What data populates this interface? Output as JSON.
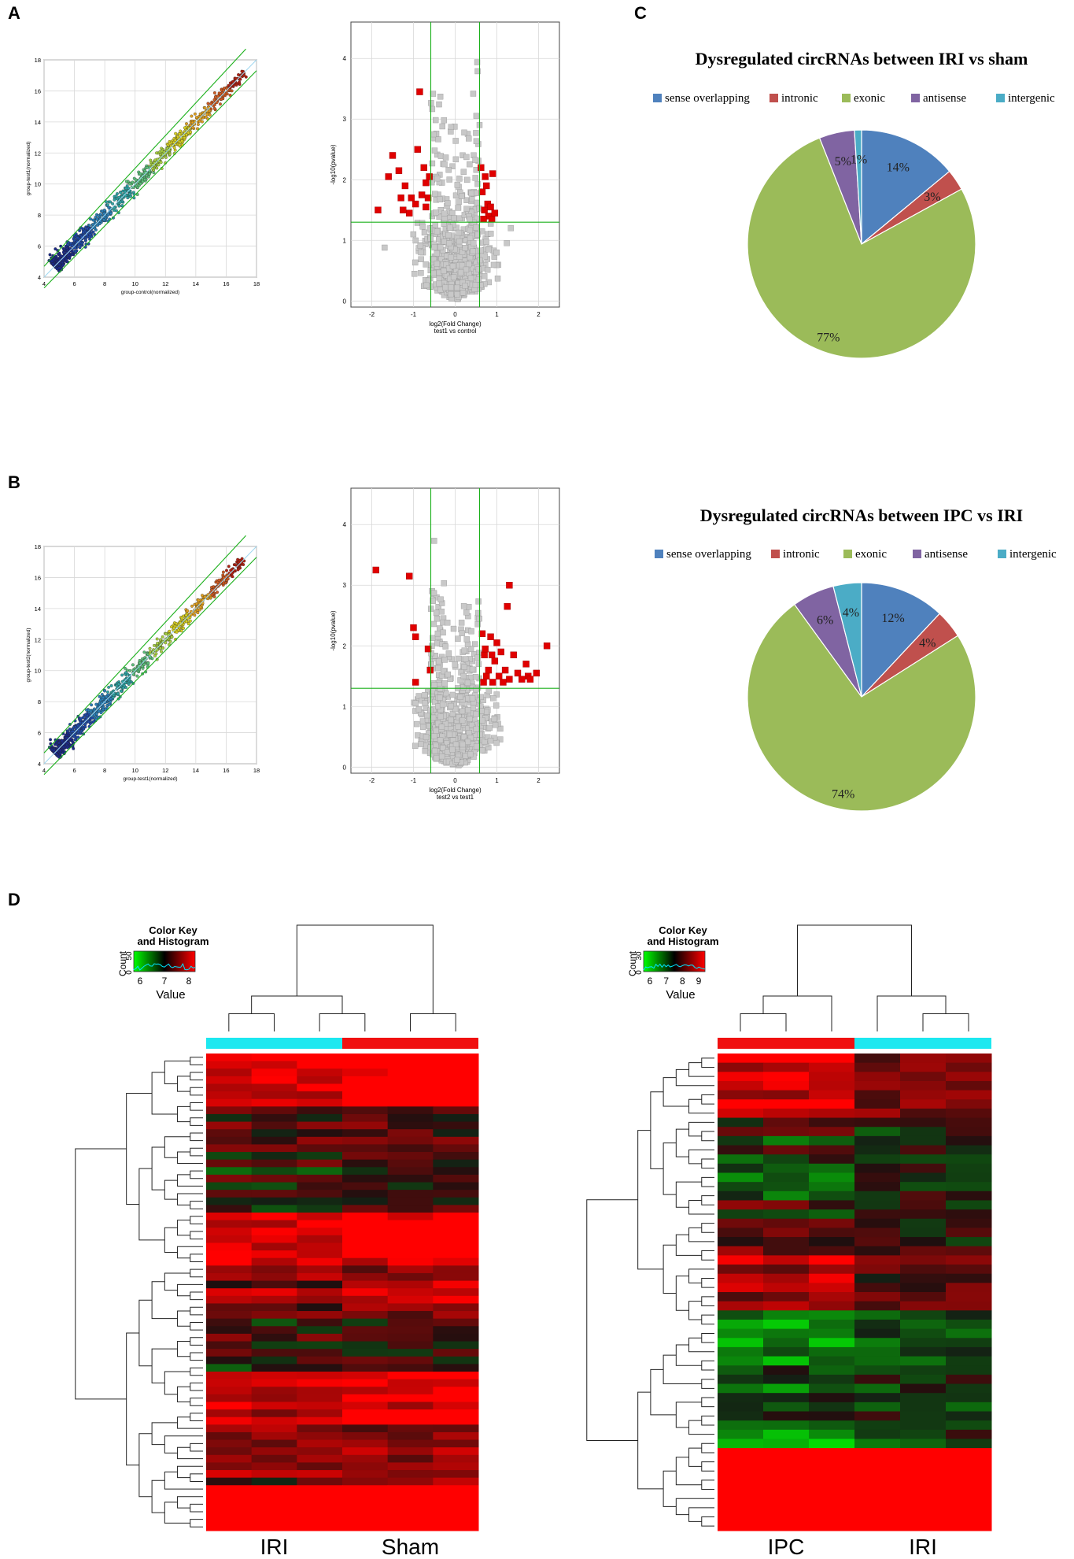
{
  "panels": {
    "A": "A",
    "B": "B",
    "C": "C",
    "D": "D"
  },
  "colors": {
    "sense": "#4F81BD",
    "intronic": "#C0504D",
    "exonic": "#9BBB59",
    "antisense": "#8064A2",
    "intergenic": "#4BACC6",
    "up": "#e00000",
    "gray": "#c8c8c8",
    "fit_line": "#1bb01b",
    "group_cyan": "#1de8f0",
    "group_red": "#f01010"
  },
  "chart_data": [
    {
      "id": "scatterA",
      "type": "scatter",
      "xlabel": "group-control(normalized)",
      "ylabel": "group-test1(normalized)",
      "xlim": [
        4,
        18
      ],
      "ylim": [
        4,
        18
      ],
      "ticks": [
        "4",
        "6",
        "8",
        "10",
        "12",
        "14",
        "16",
        "18"
      ]
    },
    {
      "id": "volcanoA",
      "type": "scatter",
      "xlabel": "log2(Fold Change)",
      "xlabel2": "test1 vs control",
      "ylabel": "-log10(pvalue)",
      "xlim": [
        -2.5,
        2.5
      ],
      "ylim": [
        -0.1,
        4.6
      ],
      "xticks": [
        "-2",
        "-1",
        "0",
        "1",
        "2"
      ],
      "yticks": [
        "0",
        "1",
        "2",
        "3",
        "4"
      ],
      "thresholds": {
        "fold": [
          -0.585,
          0.585
        ],
        "p": 1.3
      },
      "highlight": [
        [
          -1.85,
          1.5
        ],
        [
          -1.6,
          2.05
        ],
        [
          -1.5,
          2.4
        ],
        [
          -1.35,
          2.15
        ],
        [
          -1.25,
          1.5
        ],
        [
          -1.2,
          1.9
        ],
        [
          -1.1,
          1.45
        ],
        [
          -0.95,
          1.6
        ],
        [
          -0.9,
          2.5
        ],
        [
          -0.85,
          3.45
        ],
        [
          -0.8,
          1.75
        ],
        [
          -0.75,
          2.2
        ],
        [
          -0.7,
          1.95
        ],
        [
          -0.7,
          1.55
        ],
        [
          -0.65,
          1.7
        ],
        [
          -0.62,
          2.05
        ],
        [
          -1.05,
          1.7
        ],
        [
          -1.3,
          1.7
        ],
        [
          0.62,
          2.2
        ],
        [
          0.65,
          1.8
        ],
        [
          0.7,
          1.5
        ],
        [
          0.72,
          2.05
        ],
        [
          0.78,
          1.6
        ],
        [
          0.8,
          1.4
        ],
        [
          0.85,
          1.55
        ],
        [
          0.9,
          2.1
        ],
        [
          0.95,
          1.45
        ],
        [
          0.68,
          1.35
        ],
        [
          0.75,
          1.9
        ],
        [
          0.88,
          1.35
        ]
      ]
    },
    {
      "id": "scatterB",
      "type": "scatter",
      "xlabel": "group-test1(normalized)",
      "ylabel": "group-test2(normalized)",
      "xlim": [
        4,
        18
      ],
      "ylim": [
        4,
        18
      ],
      "ticks": [
        "4",
        "6",
        "8",
        "10",
        "12",
        "14",
        "16",
        "18"
      ]
    },
    {
      "id": "volcanoB",
      "type": "scatter",
      "xlabel": "log2(Fold Change)",
      "xlabel2": "test2 vs test1",
      "ylabel": "-log10(pvalue)",
      "xlim": [
        -2.5,
        2.5
      ],
      "ylim": [
        -0.1,
        4.6
      ],
      "xticks": [
        "-2",
        "-1",
        "0",
        "1",
        "2"
      ],
      "yticks": [
        "0",
        "1",
        "2",
        "3",
        "4"
      ],
      "thresholds": {
        "fold": [
          -0.585,
          0.585
        ],
        "p": 1.3
      },
      "highlight": [
        [
          -1.9,
          3.25
        ],
        [
          -1.1,
          3.15
        ],
        [
          -1.0,
          2.3
        ],
        [
          -0.95,
          1.4
        ],
        [
          -0.65,
          1.95
        ],
        [
          -0.6,
          1.6
        ],
        [
          -0.95,
          2.15
        ],
        [
          1.3,
          3.0
        ],
        [
          1.25,
          2.65
        ],
        [
          0.65,
          2.2
        ],
        [
          0.7,
          1.85
        ],
        [
          0.75,
          1.5
        ],
        [
          0.8,
          1.6
        ],
        [
          0.85,
          2.15
        ],
        [
          0.9,
          1.4
        ],
        [
          0.95,
          1.75
        ],
        [
          1.0,
          2.05
        ],
        [
          1.05,
          1.5
        ],
        [
          1.1,
          1.9
        ],
        [
          1.15,
          1.4
        ],
        [
          1.2,
          1.6
        ],
        [
          1.3,
          1.45
        ],
        [
          1.4,
          1.85
        ],
        [
          1.5,
          1.55
        ],
        [
          1.6,
          1.45
        ],
        [
          1.75,
          1.5
        ],
        [
          1.8,
          1.45
        ],
        [
          2.2,
          2.0
        ],
        [
          0.68,
          1.4
        ],
        [
          0.72,
          1.95
        ],
        [
          0.88,
          1.85
        ],
        [
          1.7,
          1.7
        ],
        [
          1.95,
          1.55
        ]
      ]
    },
    {
      "id": "pieC1",
      "type": "pie",
      "title": "Dysregulated circRNAs between IRI vs sham",
      "legend": [
        "sense overlapping",
        "intronic",
        "exonic",
        "antisense",
        "intergenic"
      ],
      "values": [
        14,
        3,
        77,
        5,
        1
      ],
      "labels": [
        "14%",
        "3%",
        "77%",
        "5%",
        "1%"
      ]
    },
    {
      "id": "pieC2",
      "type": "pie",
      "title": "Dysregulated circRNAs between IPC vs IRI",
      "legend": [
        "sense overlapping",
        "intronic",
        "exonic",
        "antisense",
        "intergenic"
      ],
      "values": [
        12,
        4,
        74,
        6,
        4
      ],
      "labels": [
        "12%",
        "4%",
        "74%",
        "6%",
        "4%"
      ]
    },
    {
      "id": "heatmap1",
      "type": "heatmap",
      "key_title": "Color Key",
      "key_title2": "and Histogram",
      "key_ylabel": "Count",
      "key_yticks": [
        "0",
        "50"
      ],
      "key_xticks": [
        "6",
        "7",
        "8"
      ],
      "key_xlabel": "Value",
      "groups": [
        "IRI",
        "Sham"
      ],
      "rows": 63
    },
    {
      "id": "heatmap2",
      "type": "heatmap",
      "key_title": "Color Key",
      "key_title2": "and Histogram",
      "key_ylabel": "Count",
      "key_yticks": [
        "0",
        "30"
      ],
      "key_xticks": [
        "6",
        "7",
        "8",
        "9"
      ],
      "key_xlabel": "Value",
      "groups": [
        "IPC",
        "IRI"
      ],
      "rows": 52
    }
  ]
}
